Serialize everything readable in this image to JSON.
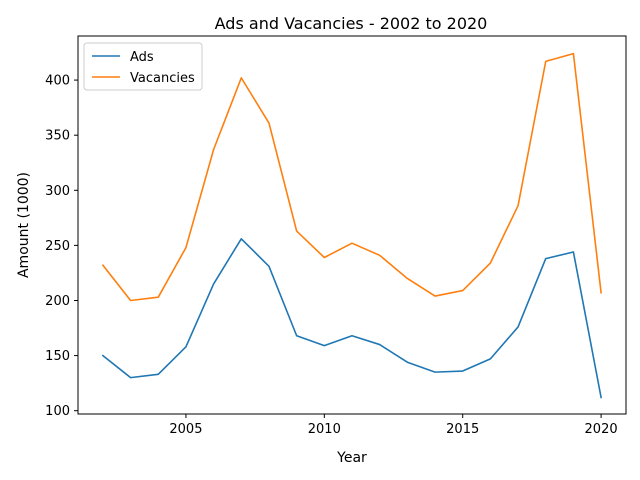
{
  "chart_data": {
    "type": "line",
    "title": "Ads and Vacancies - 2002 to 2020",
    "xlabel": "Year",
    "ylabel": "Amount (1000)",
    "x": [
      2002,
      2003,
      2004,
      2005,
      2006,
      2007,
      2008,
      2009,
      2010,
      2011,
      2012,
      2013,
      2014,
      2015,
      2016,
      2017,
      2018,
      2019,
      2020
    ],
    "xlim": [
      2001.1,
      2020.9
    ],
    "ylim": [
      97,
      440
    ],
    "xticks": [
      2005,
      2010,
      2015,
      2020
    ],
    "yticks": [
      100,
      150,
      200,
      250,
      300,
      350,
      400
    ],
    "xtick_labels": [
      "2005",
      "2010",
      "2015",
      "2020"
    ],
    "ytick_labels": [
      "100",
      "150",
      "200",
      "250",
      "300",
      "350",
      "400"
    ],
    "grid": false,
    "legend_position": "top-left",
    "series": [
      {
        "name": "Ads",
        "color": "#1f77b4",
        "values": [
          150,
          130,
          133,
          158,
          215,
          256,
          231,
          168,
          159,
          168,
          160,
          144,
          135,
          136,
          147,
          176,
          238,
          244,
          112
        ]
      },
      {
        "name": "Vacancies",
        "color": "#ff7f0e",
        "values": [
          232,
          200,
          203,
          248,
          337,
          402,
          361,
          263,
          239,
          252,
          241,
          220,
          204,
          209,
          234,
          286,
          417,
          424,
          207
        ]
      }
    ]
  }
}
